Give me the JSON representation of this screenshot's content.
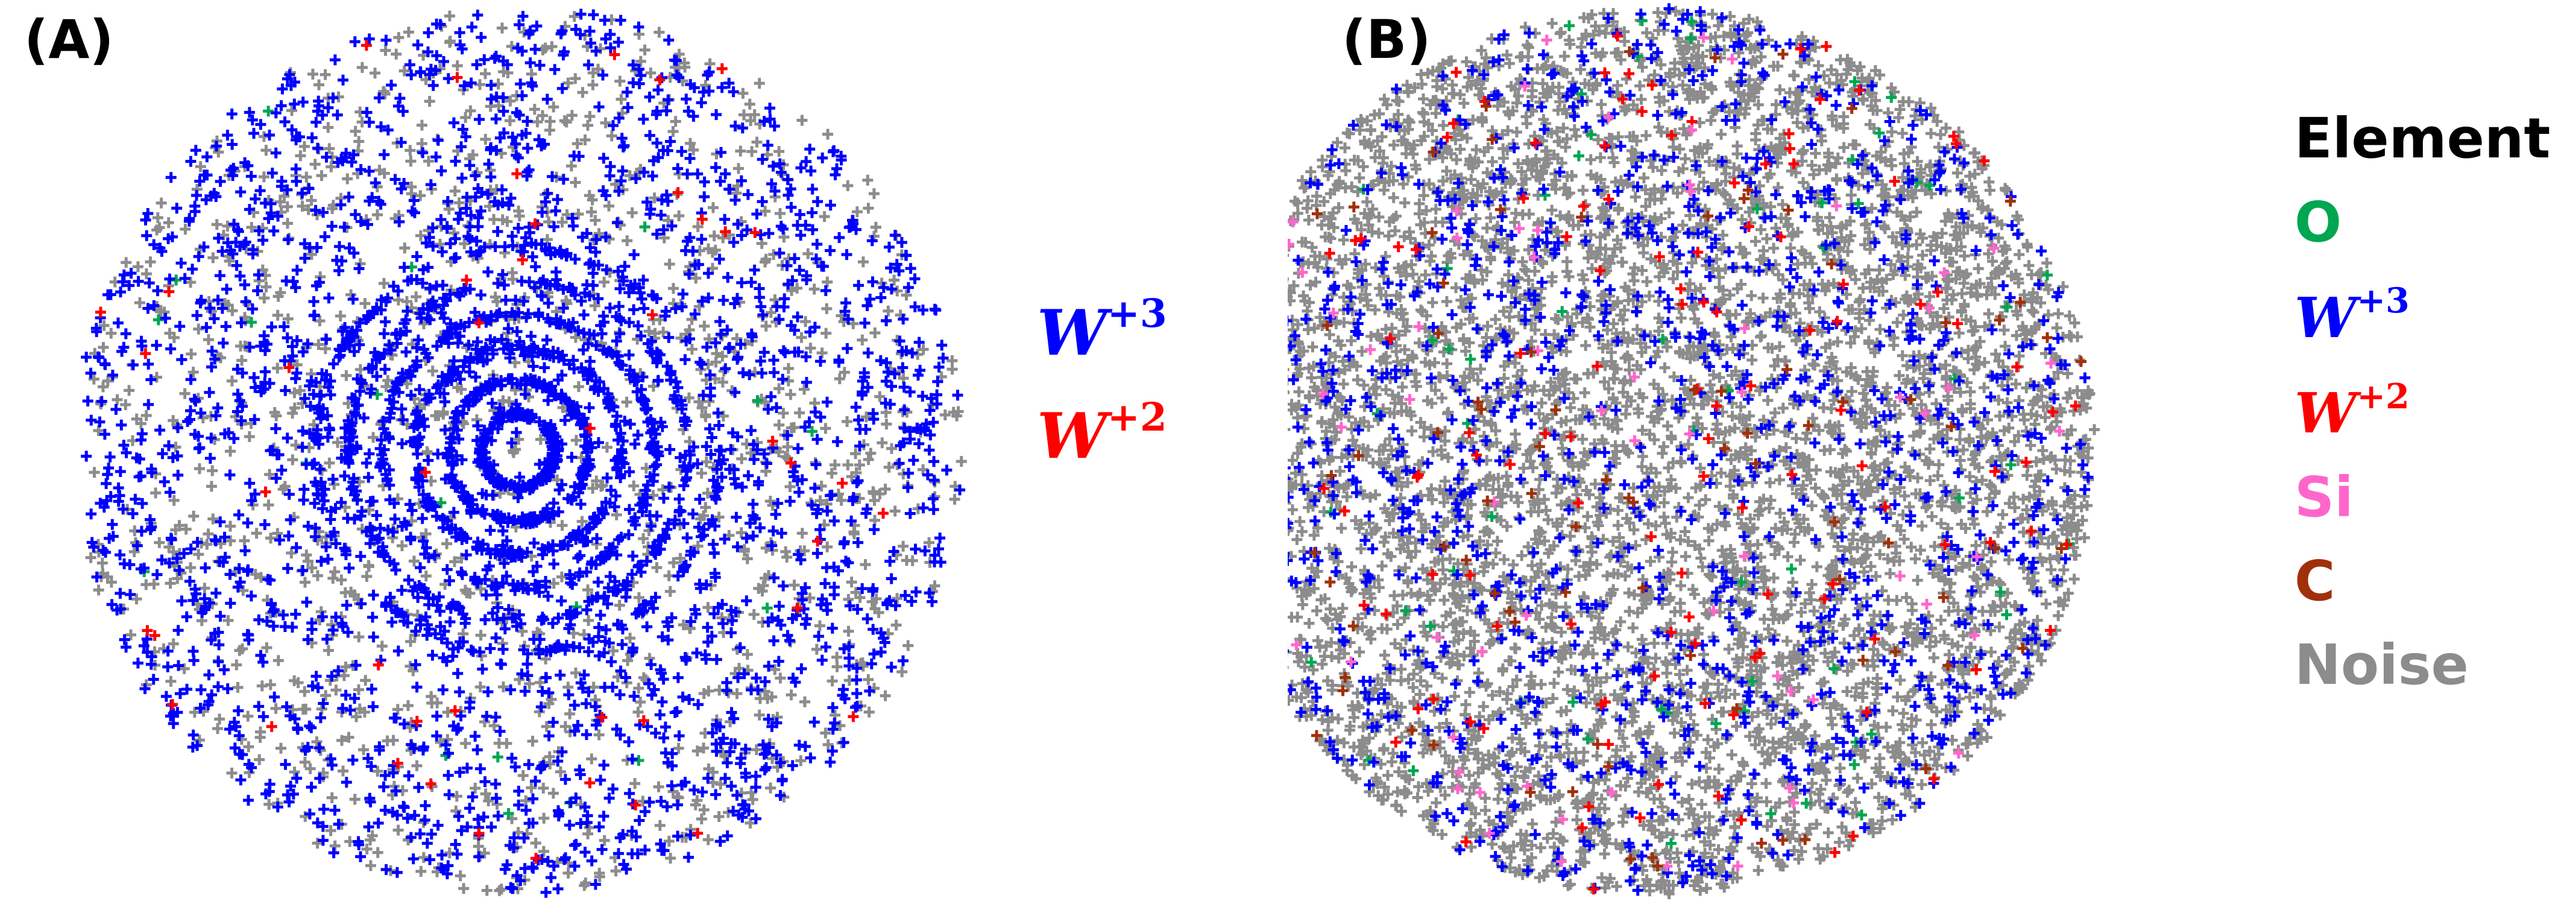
{
  "panels": [
    {
      "label": "(A)"
    },
    {
      "label": "(B)"
    }
  ],
  "legend_a": [
    {
      "base": "W",
      "charge": "+3",
      "color": "#0000ff"
    },
    {
      "base": "W",
      "charge": "+2",
      "color": "#ff0000"
    }
  ],
  "legend_b": {
    "title": "Element",
    "items": [
      {
        "text": "O",
        "color": "#00a651",
        "math": false
      },
      {
        "base": "W",
        "charge": "+3",
        "color": "#0000ff",
        "math": true
      },
      {
        "base": "W",
        "charge": "+2",
        "color": "#ff0000",
        "math": true
      },
      {
        "text": "Si",
        "color": "#ff66cc",
        "math": false
      },
      {
        "text": "C",
        "color": "#a0300a",
        "math": false
      },
      {
        "text": "Noise",
        "color": "#8c8c8c",
        "math": false
      }
    ]
  },
  "chart_data": [
    {
      "type": "scatter",
      "title": "(A)",
      "marker": "+",
      "series": [
        {
          "name": "W+3",
          "color": "#0000ff",
          "approx_count": 3200,
          "spatial_pattern": "dense across detector, concentric rings near center"
        },
        {
          "name": "W+2",
          "color": "#ff0000",
          "approx_count": 45,
          "spatial_pattern": "sparse, scattered"
        }
      ],
      "unlabeled_marks": [
        {
          "color": "#8c8c8c",
          "approx_count": 1300,
          "spatial_pattern": "mostly near outer edge"
        },
        {
          "color": "#00a651",
          "approx_count": 20,
          "spatial_pattern": "very sparse"
        }
      ],
      "xlabel": "",
      "ylabel": "",
      "axes_visible": false,
      "grid": false,
      "legend_position": "right"
    },
    {
      "type": "scatter",
      "title": "(B)",
      "marker": "+",
      "series": [
        {
          "name": "O",
          "color": "#00a651",
          "approx_count": 70,
          "spatial_pattern": "sparse, scattered"
        },
        {
          "name": "W+3",
          "color": "#0000ff",
          "approx_count": 1200,
          "spatial_pattern": "scattered across detector"
        },
        {
          "name": "W+2",
          "color": "#ff0000",
          "approx_count": 130,
          "spatial_pattern": "sparse, scattered"
        },
        {
          "name": "Si",
          "color": "#ff66cc",
          "approx_count": 70,
          "spatial_pattern": "sparse, scattered"
        },
        {
          "name": "C",
          "color": "#a0300a",
          "approx_count": 90,
          "spatial_pattern": "sparse, scattered"
        },
        {
          "name": "Noise",
          "color": "#8c8c8c",
          "approx_count": 5500,
          "spatial_pattern": "dense, fills most of detector, densest at top-right and bottom"
        }
      ],
      "xlabel": "",
      "ylabel": "",
      "axes_visible": false,
      "grid": false,
      "legend_position": "right"
    }
  ]
}
